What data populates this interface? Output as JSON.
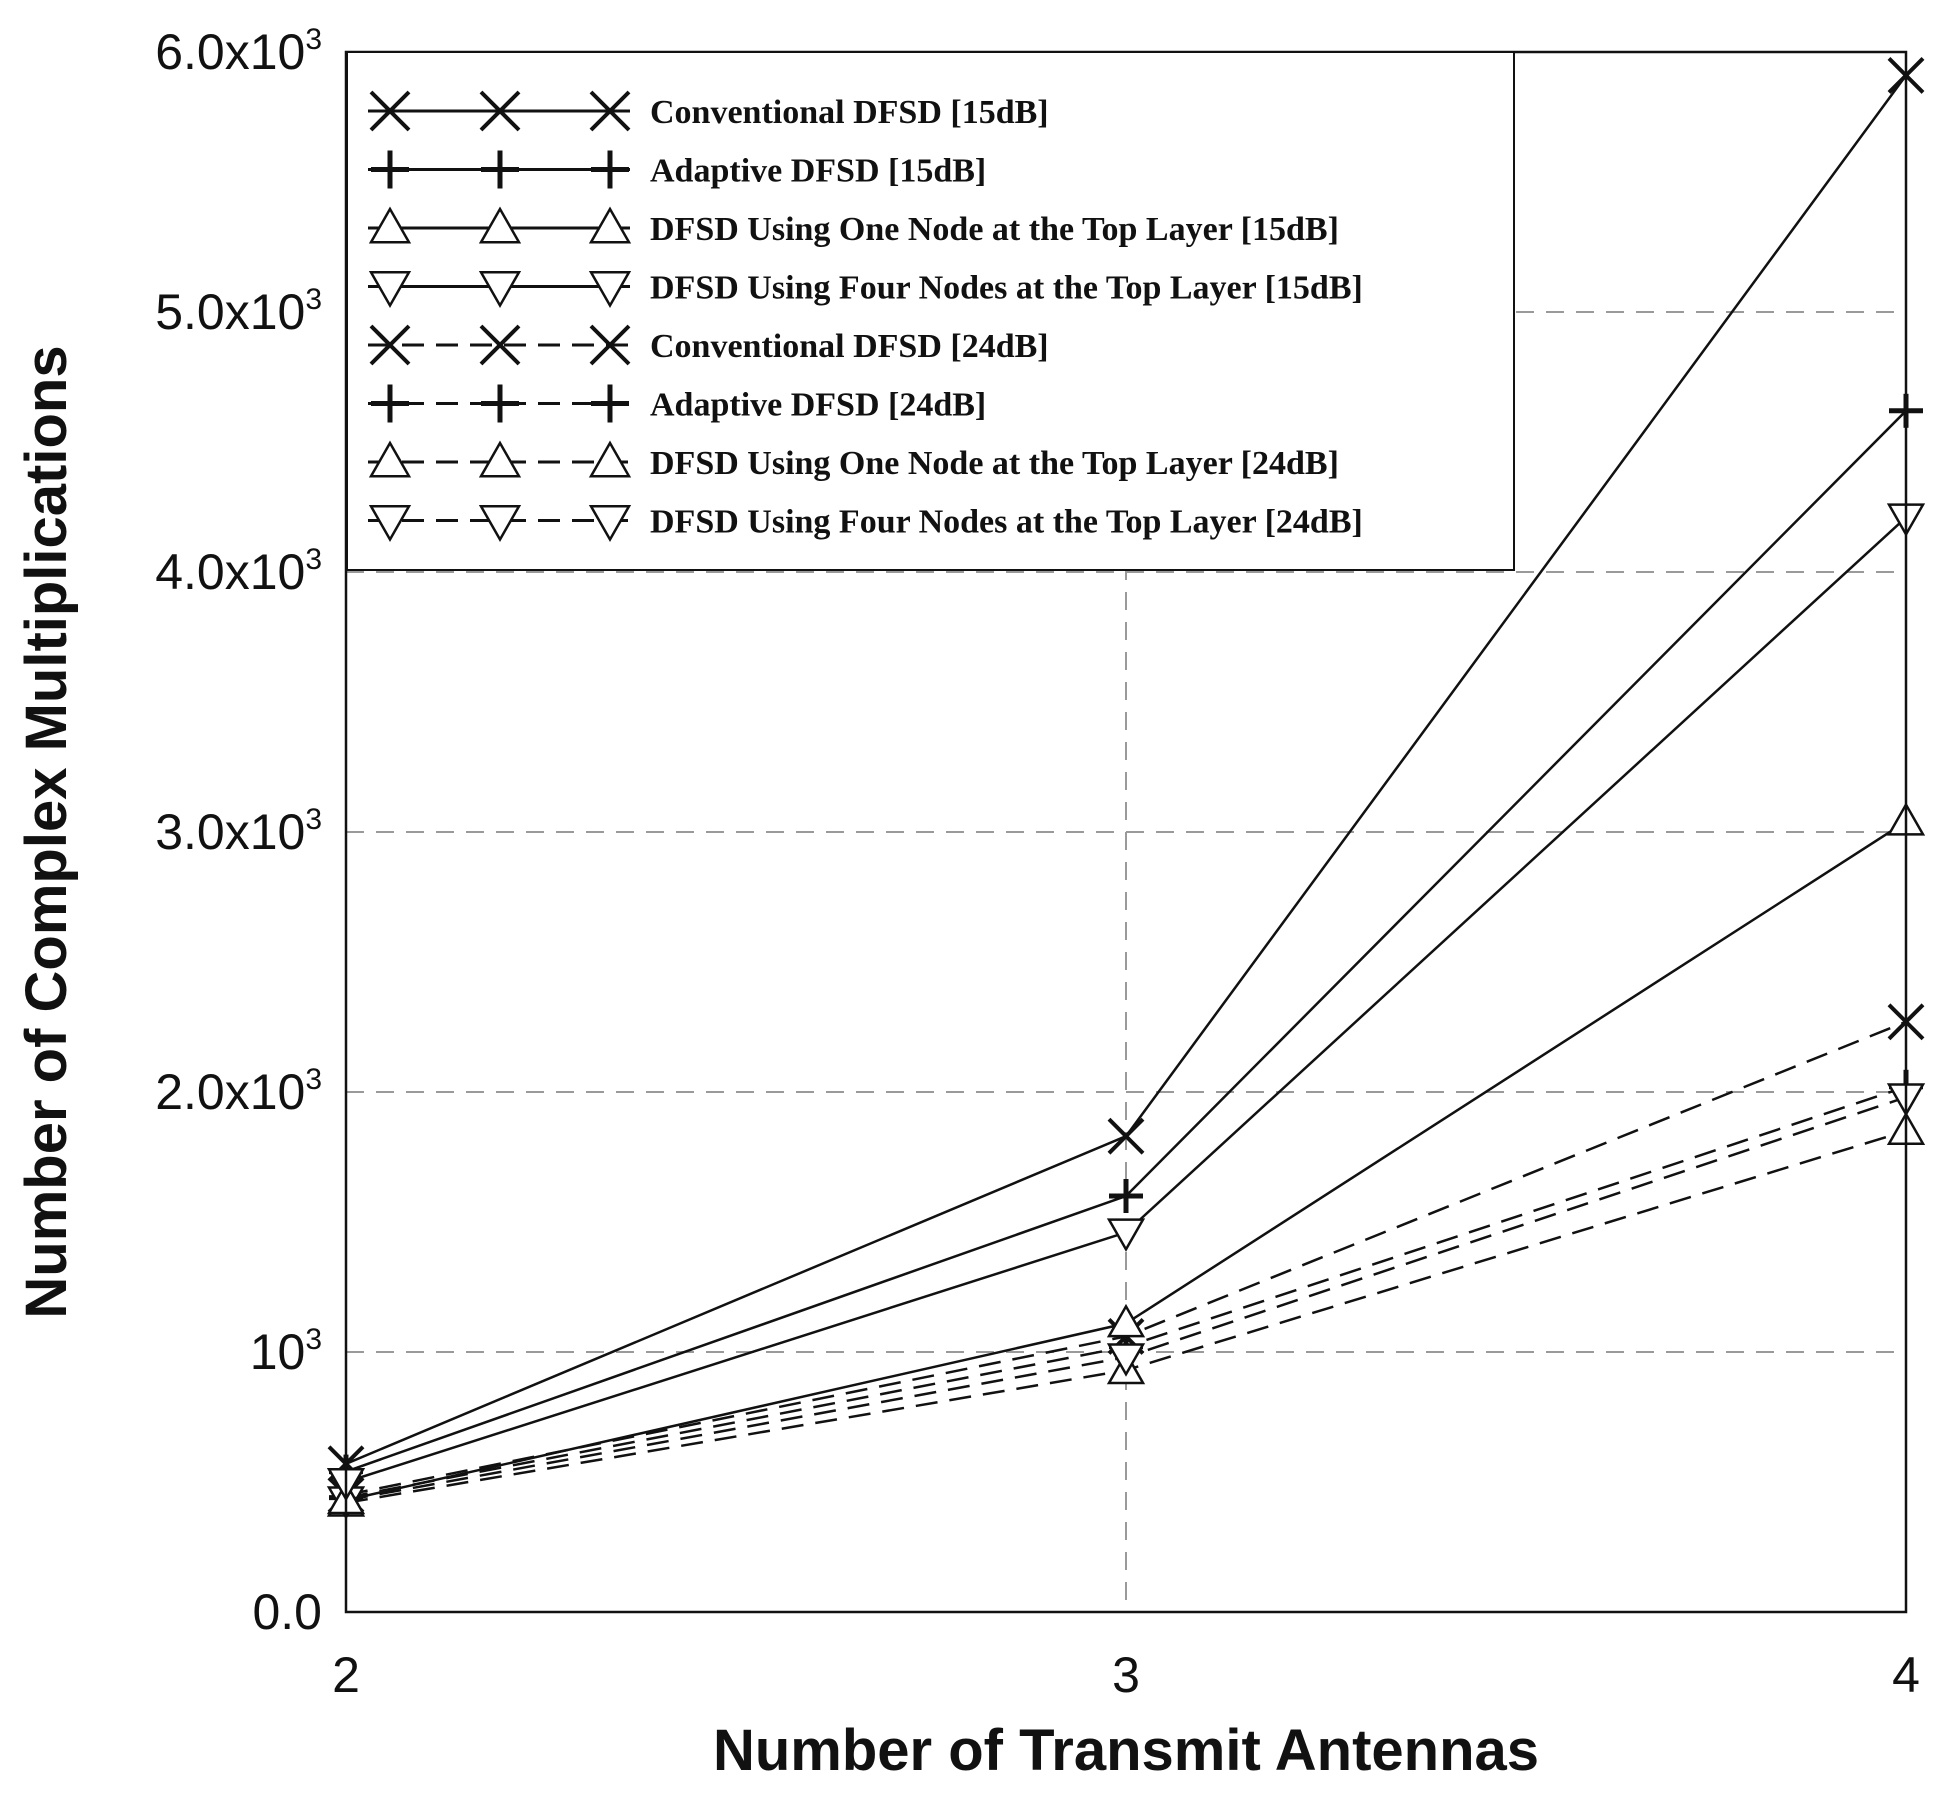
{
  "chart_data": {
    "type": "line",
    "xlabel": "Number of Transmit Antennas",
    "ylabel": "Number of Complex Multiplications",
    "x": [
      2,
      3,
      4
    ],
    "xticks": [
      "2",
      "3",
      "4"
    ],
    "ylim": [
      0,
      6000
    ],
    "yticks": [
      {
        "value": 0,
        "base": "0.0",
        "exp": ""
      },
      {
        "value": 1000,
        "base": "10",
        "exp": "3"
      },
      {
        "value": 2000,
        "base": "2.0x10",
        "exp": "3"
      },
      {
        "value": 3000,
        "base": "3.0x10",
        "exp": "3"
      },
      {
        "value": 4000,
        "base": "4.0x10",
        "exp": "3"
      },
      {
        "value": 5000,
        "base": "5.0x10",
        "exp": "3"
      },
      {
        "value": 6000,
        "base": "6.0x10",
        "exp": "3"
      }
    ],
    "grid": true,
    "legend_position": "top-left",
    "series": [
      {
        "name": "Conventional DFSD [15dB]",
        "marker": "x",
        "dash": "solid",
        "values": [
          570,
          1830,
          5910
        ]
      },
      {
        "name": "Adaptive DFSD [15dB]",
        "marker": "plus",
        "dash": "solid",
        "values": [
          540,
          1600,
          4620
        ]
      },
      {
        "name": "DFSD Using One Node at the Top Layer [15dB]",
        "marker": "triangle-up",
        "dash": "solid",
        "values": [
          430,
          1110,
          3040
        ]
      },
      {
        "name": "DFSD Using Four Nodes at the Top Layer [15dB]",
        "marker": "triangle-down",
        "dash": "solid",
        "values": [
          500,
          1460,
          4210
        ]
      },
      {
        "name": "Conventional DFSD [24dB]",
        "marker": "x",
        "dash": "dashed",
        "values": [
          450,
          1060,
          2270
        ]
      },
      {
        "name": "Adaptive DFSD [24dB]",
        "marker": "plus",
        "dash": "dashed",
        "values": [
          440,
          1020,
          2020
        ]
      },
      {
        "name": "DFSD Using One Node at the Top Layer [24dB]",
        "marker": "triangle-up",
        "dash": "dashed",
        "values": [
          420,
          930,
          1850
        ]
      },
      {
        "name": "DFSD Using Four Nodes at the Top Layer [24dB]",
        "marker": "triangle-down",
        "dash": "dashed",
        "values": [
          430,
          980,
          1980
        ]
      }
    ]
  }
}
